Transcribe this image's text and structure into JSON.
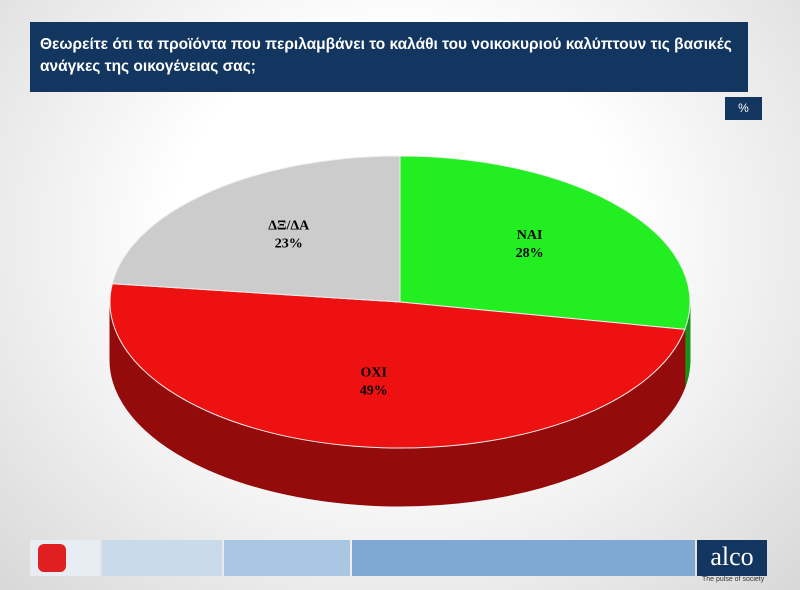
{
  "chart_data": {
    "type": "pie",
    "title": "Θεωρείτε ότι τα προϊόντα που περιλαμβάνει το καλάθι του νοικοκυριού καλύπτουν τις βασικές ανάγκες της οικογένειας σας;",
    "unit_label": "%",
    "categories": [
      "ΝΑΙ",
      "ΟΧΙ",
      "ΔΞ/ΔΑ"
    ],
    "values": [
      28,
      49,
      23
    ],
    "value_labels": [
      "28%",
      "49%",
      "23%"
    ],
    "colors": [
      "#22ee22",
      "#ee1111",
      "#cccccc"
    ],
    "brand": "alco",
    "tagline": "The pulse of society"
  }
}
